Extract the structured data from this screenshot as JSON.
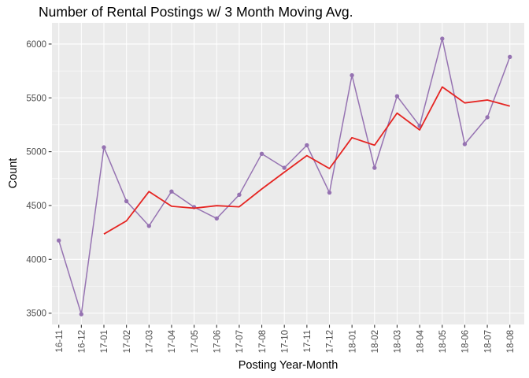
{
  "title": "Number of Rental Postings w/ 3 Month Moving Avg.",
  "chart_data": {
    "type": "line",
    "title": "Number of Rental Postings w/ 3 Month Moving Avg.",
    "xlabel": "Posting Year-Month",
    "ylabel": "Count",
    "categories": [
      "16-11",
      "16-12",
      "17-01",
      "17-02",
      "17-03",
      "17-04",
      "17-05",
      "17-06",
      "17-07",
      "17-08",
      "17-10",
      "17-11",
      "17-12",
      "18-01",
      "18-02",
      "18-03",
      "18-04",
      "18-05",
      "18-06",
      "18-07",
      "18-08"
    ],
    "series": [
      {
        "name": "Rental Postings",
        "color": "#9673b2",
        "marker": true,
        "line_width": 1.5,
        "values": [
          4175,
          3490,
          5040,
          4540,
          4310,
          4630,
          4485,
          4380,
          4600,
          4980,
          4850,
          5060,
          4620,
          5710,
          4850,
          5515,
          5240,
          6050,
          5070,
          5320,
          5880
        ]
      },
      {
        "name": "3 Month Moving Avg",
        "color": "#e52421",
        "marker": false,
        "line_width": 1.8,
        "values": [
          null,
          null,
          4235.0,
          4356.7,
          4630.0,
          4493.3,
          4475.0,
          4498.3,
          4488.3,
          4653.3,
          4810.0,
          4963.3,
          4843.3,
          5130.0,
          5060.0,
          5358.3,
          5201.7,
          5601.7,
          5453.3,
          5480.0,
          5423.3
        ]
      }
    ],
    "yticks": [
      3500,
      4000,
      4500,
      5000,
      5500,
      6000
    ],
    "ylim": [
      3395,
      6197
    ],
    "grid": true,
    "legend_position": "none",
    "panel_bg": "#ebebeb",
    "grid_color": "#ffffff",
    "tick_color": "#333333",
    "tick_label_color": "#4d4d4d"
  }
}
